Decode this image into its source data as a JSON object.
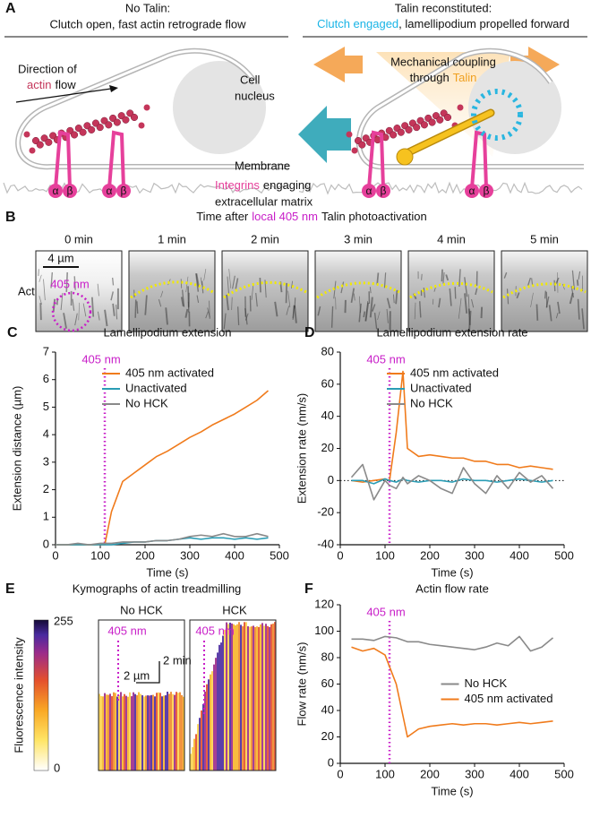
{
  "panel_a": {
    "label": "A",
    "left": {
      "title": "No Talin:",
      "subtitle": "Clutch open, fast actin retrograde flow",
      "flow_label_1": "Direction of",
      "flow_label_2a": "actin",
      "flow_label_2b": "flow",
      "nucleus_1": "Cell",
      "nucleus_2": "nucleus",
      "membrane": "Membrane",
      "integrins_a": "Integrins",
      "integrins_b": "engaging",
      "integrins_c": "extracellular matrix",
      "alpha": "α",
      "beta": "β"
    },
    "right": {
      "title": "Talin reconstituted:",
      "subtitle_a": "Clutch engaged",
      "subtitle_b": ", lamellipodium propelled forward",
      "coupling_1": "Mechanical coupling",
      "coupling_2a": "through",
      "coupling_2b": "Talin"
    }
  },
  "panel_b": {
    "label": "B",
    "title_a": "Time after",
    "title_b": "local 405 nm",
    "title_c": "Talin photoactivation",
    "times": [
      "0 min",
      "1 min",
      "2 min",
      "3 min",
      "4 min",
      "5 min"
    ],
    "row_label": "Actin",
    "scale_bar": "4 µm",
    "stimulus": "405 nm"
  },
  "panel_e": {
    "label": "E",
    "title": "Kymographs of actin treadmilling",
    "colorbar_label": "Fluorescence intensity",
    "colorbar_max": 255,
    "colorbar_min": 0,
    "kymographs": [
      "No HCK",
      "HCK"
    ],
    "stimulus": "405 nm",
    "time_scale": "2 min",
    "space_scale": "2 µm"
  },
  "chart_data": [
    {
      "type": "line",
      "panel_label": "C",
      "title": "Lamellipodium extension",
      "xlabel": "Time (s)",
      "ylabel": "Extension distance (µm)",
      "xlim": [
        0,
        500
      ],
      "xticks": [
        0,
        100,
        200,
        300,
        400,
        500
      ],
      "ylim": [
        0,
        7
      ],
      "yticks": [
        0,
        1,
        2,
        3,
        4,
        5,
        6,
        7
      ],
      "annotation": {
        "text": "405 nm",
        "x": 110
      },
      "legend": "upper left",
      "x": [
        0,
        25,
        50,
        75,
        100,
        110,
        125,
        150,
        175,
        200,
        225,
        250,
        275,
        300,
        325,
        350,
        375,
        400,
        425,
        450,
        475
      ],
      "series": [
        {
          "name": "405 nm activated",
          "color": "#f07b1c",
          "values": [
            0,
            0,
            0,
            0,
            0,
            0,
            1.2,
            2.3,
            2.6,
            2.9,
            3.2,
            3.4,
            3.65,
            3.9,
            4.1,
            4.35,
            4.55,
            4.75,
            5.0,
            5.25,
            5.6
          ]
        },
        {
          "name": "Unactivated",
          "color": "#2a9db5",
          "values": [
            0,
            0,
            0,
            0,
            0,
            0,
            0,
            0.05,
            0.1,
            0.1,
            0.15,
            0.15,
            0.2,
            0.25,
            0.2,
            0.25,
            0.25,
            0.2,
            0.25,
            0.2,
            0.25
          ]
        },
        {
          "name": "No HCK",
          "color": "#8a8a8a",
          "values": [
            0,
            0,
            0.05,
            0,
            0.05,
            0.05,
            0.05,
            0.1,
            0.1,
            0.1,
            0.15,
            0.15,
            0.2,
            0.3,
            0.35,
            0.3,
            0.4,
            0.3,
            0.3,
            0.4,
            0.3
          ]
        }
      ]
    },
    {
      "type": "line",
      "panel_label": "D",
      "title": "Lamellipodium extension rate",
      "xlabel": "Time (s)",
      "ylabel": "Extension rate (nm/s)",
      "xlim": [
        0,
        500
      ],
      "xticks": [
        0,
        100,
        200,
        300,
        400,
        500
      ],
      "ylim": [
        -40,
        80
      ],
      "yticks": [
        -40,
        -20,
        0,
        20,
        40,
        60,
        80
      ],
      "zero_line": true,
      "annotation": {
        "text": "405 nm",
        "x": 110
      },
      "legend": "upper left",
      "x": [
        25,
        50,
        75,
        100,
        110,
        125,
        140,
        150,
        175,
        200,
        225,
        250,
        275,
        300,
        325,
        350,
        375,
        400,
        425,
        450,
        475
      ],
      "series": [
        {
          "name": "405 nm activated",
          "color": "#f07b1c",
          "values": [
            0,
            -1,
            0,
            1,
            0,
            30,
            68,
            20,
            15,
            16,
            15,
            14,
            14,
            12,
            12,
            10,
            10,
            8,
            9,
            8,
            7
          ]
        },
        {
          "name": "Unactivated",
          "color": "#2a9db5",
          "values": [
            0,
            0,
            -2,
            1,
            0,
            -1,
            1,
            0,
            -1,
            0,
            0,
            -1,
            1,
            0,
            0,
            -1,
            0,
            1,
            0,
            -1,
            0
          ]
        },
        {
          "name": "No HCK",
          "color": "#8a8a8a",
          "values": [
            2,
            10,
            -12,
            0,
            -3,
            -5,
            2,
            -2,
            3,
            0,
            -5,
            -8,
            8,
            -2,
            -8,
            3,
            -5,
            5,
            -1,
            3,
            -5
          ]
        }
      ]
    },
    {
      "type": "line",
      "panel_label": "F",
      "title": "Actin flow rate",
      "xlabel": "Time (s)",
      "ylabel": "Flow rate (nm/s)",
      "xlim": [
        0,
        500
      ],
      "xticks": [
        0,
        100,
        200,
        300,
        400,
        500
      ],
      "ylim": [
        0,
        120
      ],
      "yticks": [
        0,
        20,
        40,
        60,
        80,
        100,
        120
      ],
      "annotation": {
        "text": "405 nm",
        "x": 110
      },
      "legend": "center right",
      "x": [
        25,
        50,
        75,
        100,
        125,
        150,
        175,
        200,
        225,
        250,
        275,
        300,
        325,
        350,
        375,
        400,
        425,
        450,
        475
      ],
      "series": [
        {
          "name": "No HCK",
          "color": "#8a8a8a",
          "values": [
            94,
            94,
            93,
            96,
            95,
            92,
            92,
            90,
            89,
            88,
            87,
            86,
            88,
            91,
            89,
            96,
            85,
            88,
            95
          ]
        },
        {
          "name": "405 nm activated",
          "color": "#f07b1c",
          "values": [
            88,
            85,
            87,
            82,
            60,
            20,
            26,
            28,
            29,
            30,
            29,
            30,
            30,
            29,
            30,
            31,
            30,
            31,
            32
          ]
        }
      ]
    }
  ]
}
